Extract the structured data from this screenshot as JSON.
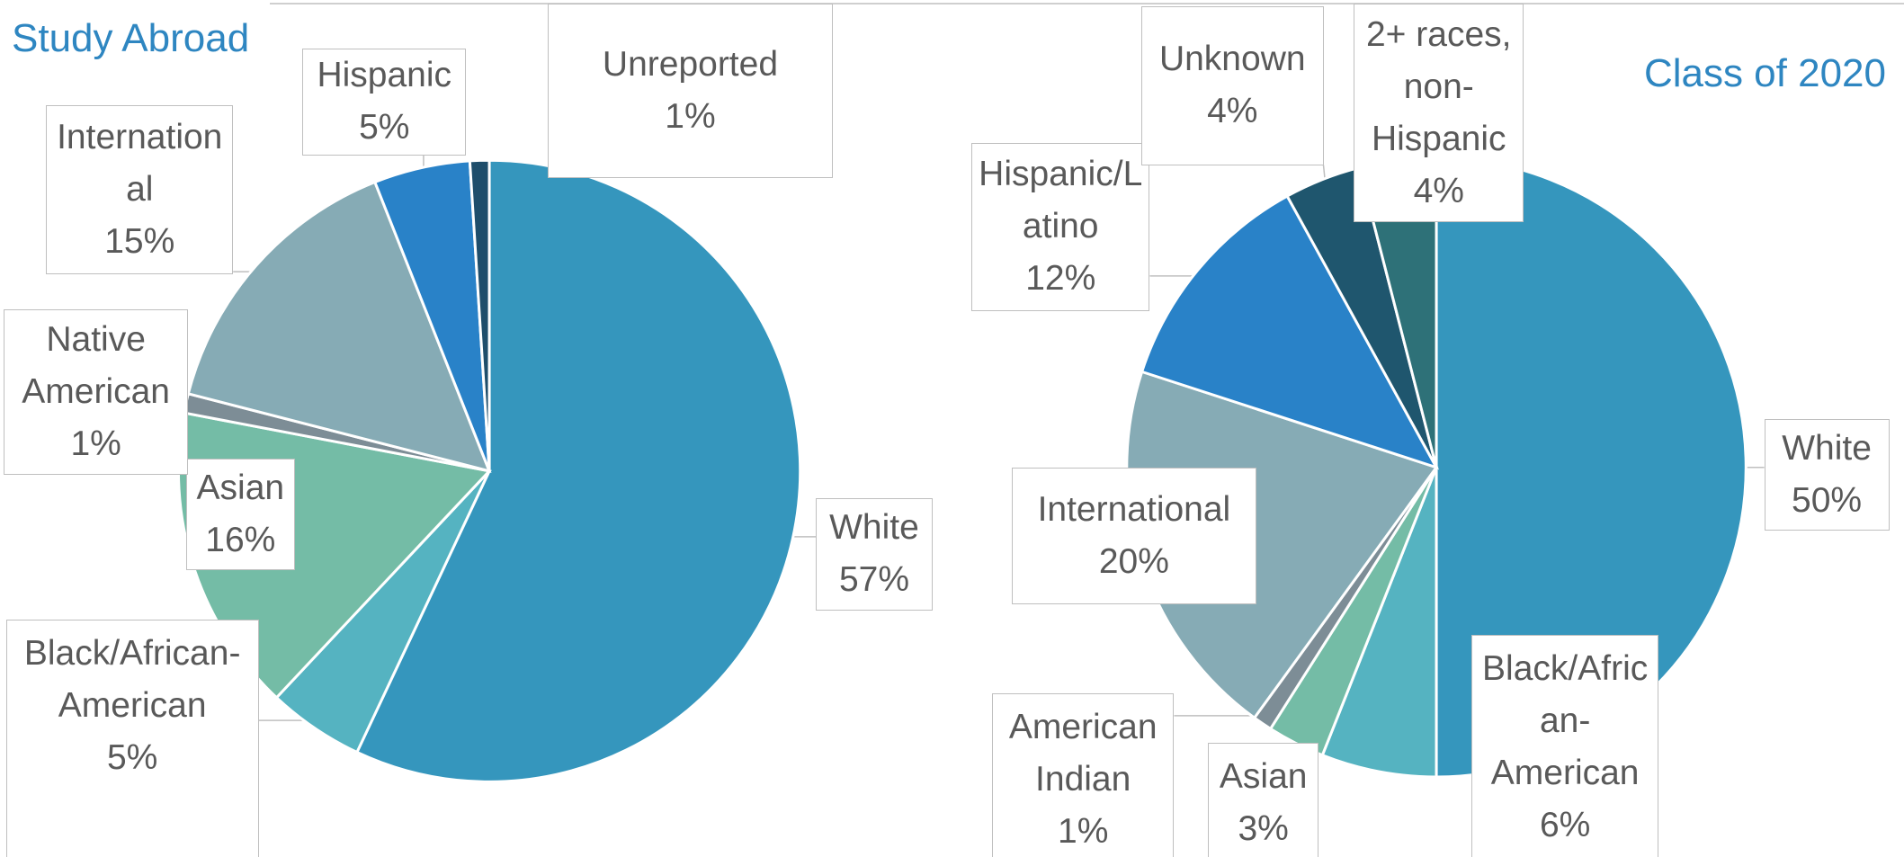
{
  "chart_data": [
    {
      "type": "pie",
      "title": "Study Abroad",
      "categories": [
        "White",
        "Black/African-American",
        "Asian",
        "Native American",
        "International",
        "Hispanic",
        "Unreported"
      ],
      "values": [
        57,
        5,
        16,
        1,
        15,
        5,
        1
      ],
      "value_labels": [
        "57%",
        "5%",
        "16%",
        "1%",
        "15%",
        "5%",
        "1%"
      ],
      "colors": [
        "#3596bd",
        "#55b3c1",
        "#74bca6",
        "#7d8d96",
        "#86abb5",
        "#2982c8",
        "#1f4e6b"
      ]
    },
    {
      "type": "pie",
      "title": "Class of 2020",
      "categories": [
        "White",
        "Black/African-American",
        "Asian",
        "American Indian",
        "International",
        "Hispanic/Latino",
        "Unknown",
        "2+ races, non-Hispanic"
      ],
      "values": [
        50,
        6,
        3,
        1,
        20,
        12,
        4,
        4
      ],
      "value_labels": [
        "50%",
        "6%",
        "3%",
        "1%",
        "20%",
        "12%",
        "4%",
        "4%"
      ],
      "colors": [
        "#3596bd",
        "#55b3c1",
        "#74bca6",
        "#7d8d96",
        "#86abb5",
        "#2982c8",
        "#1f566e",
        "#2e7178"
      ]
    }
  ]
}
